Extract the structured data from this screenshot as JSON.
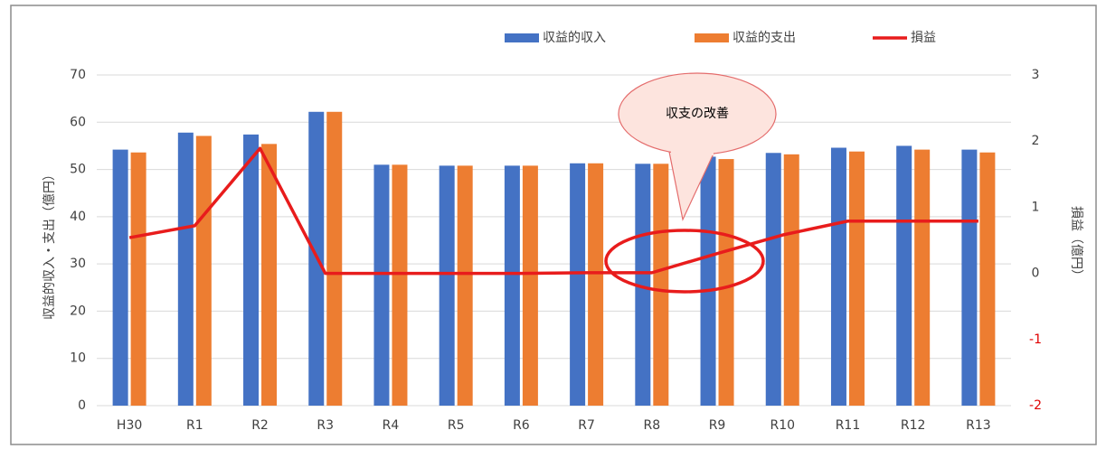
{
  "chart_data": {
    "type": "bar",
    "categories": [
      "H30",
      "R1",
      "R2",
      "R3",
      "R4",
      "R5",
      "R6",
      "R7",
      "R8",
      "R9",
      "R10",
      "R11",
      "R12",
      "R13"
    ],
    "series": [
      {
        "name": "収益的収入",
        "color": "#4472c4",
        "values": [
          54.2,
          57.8,
          57.4,
          62.2,
          51,
          50.8,
          50.8,
          51.3,
          51.2,
          52.7,
          53.5,
          54.6,
          55,
          54.2
        ]
      },
      {
        "name": "収益的支出",
        "color": "#ed7d31",
        "values": [
          53.6,
          57.1,
          55.4,
          62.2,
          51,
          50.8,
          50.8,
          51.3,
          51.2,
          52.2,
          53.2,
          53.8,
          54.2,
          53.6
        ]
      },
      {
        "name": "損益",
        "type": "line",
        "axis": "y2",
        "color": "#e81c1c",
        "values": [
          0.54,
          0.72,
          1.89,
          0,
          0,
          0,
          0,
          0.01,
          0.01,
          0.3,
          0.58,
          0.79,
          0.79,
          0.79
        ]
      }
    ],
    "ylabel": "収益的収入・支出（億円）",
    "y2label": "損益（億円）",
    "ylim": [
      0,
      70
    ],
    "yticks": [
      0,
      10,
      20,
      30,
      40,
      50,
      60,
      70
    ],
    "y2lim": [
      -2,
      3
    ],
    "y2ticks": [
      -2,
      -1,
      0,
      1,
      2,
      3
    ],
    "negative_tick_color": "#e00000",
    "grid": true,
    "legend": "top",
    "annotations": [
      {
        "text": "収支の改善"
      }
    ]
  }
}
